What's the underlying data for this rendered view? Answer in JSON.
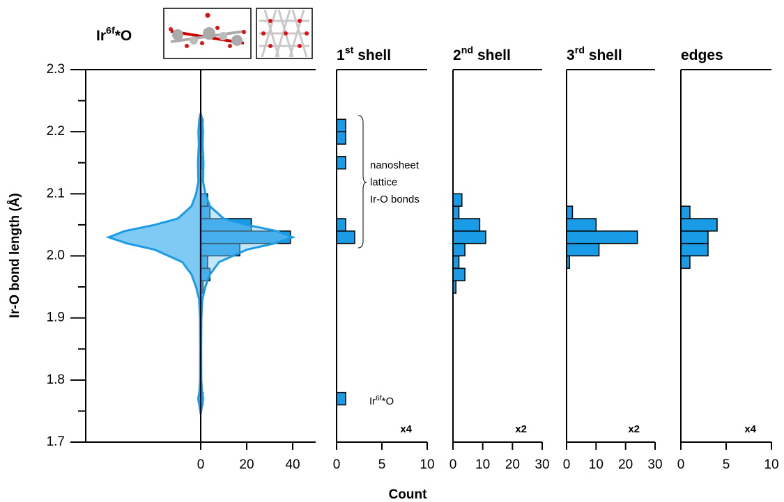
{
  "header_label": [
    "Ir",
    "6f",
    "*O"
  ],
  "chart_data": [
    {
      "type": "violin",
      "ylabel": "Ir-O bond length (Å)",
      "xlabel": "Count",
      "ylim": [
        1.7,
        2.3
      ],
      "yticks": [
        1.7,
        1.8,
        1.9,
        {
          "value": 2.0,
          "label": "2.0"
        },
        2.1,
        2.2,
        2.3
      ],
      "minor_yticks": [
        1.75,
        1.85,
        1.95,
        2.05,
        2.15,
        2.25
      ],
      "xlim": [
        -50,
        50
      ],
      "xticks": [
        0,
        20,
        40
      ],
      "bins": [
        1.74,
        1.76,
        1.78,
        1.8,
        1.82,
        1.84,
        1.86,
        1.88,
        1.9,
        1.92,
        1.94,
        1.96,
        1.98,
        2.0,
        2.02,
        2.04,
        2.06,
        2.08,
        2.1,
        2.12,
        2.14,
        2.16,
        2.18,
        2.2,
        2.22,
        2.24
      ],
      "counts": [
        0,
        1,
        0,
        0,
        0,
        0,
        0,
        0,
        0,
        0,
        1,
        4,
        3,
        17,
        39,
        22,
        4,
        3,
        0,
        0,
        1,
        0,
        1,
        1,
        0
      ],
      "density_y": [
        1.745,
        1.76,
        1.77,
        1.78,
        1.8,
        1.85,
        1.9,
        1.93,
        1.95,
        1.97,
        1.99,
        2.01,
        2.02,
        2.03,
        2.04,
        2.05,
        2.06,
        2.08,
        2.1,
        2.12,
        2.15,
        2.18,
        2.2,
        2.22,
        2.23
      ],
      "density_values": [
        0,
        0.6,
        1.1,
        0.6,
        0.25,
        0.2,
        0.3,
        0.7,
        2,
        4,
        8,
        20,
        32,
        40,
        33,
        20,
        10,
        4,
        2,
        1,
        1.2,
        0.8,
        1,
        0.6,
        0
      ],
      "color": "#1a9be6",
      "violin_color": "#7fcaf4"
    },
    {
      "type": "histogram",
      "title": [
        "1",
        "st",
        " shell"
      ],
      "scale_label": "x4",
      "xlim": [
        0,
        10
      ],
      "xticks": [
        0,
        5,
        10
      ],
      "bins": [
        1.74,
        1.76,
        1.78,
        1.8,
        1.82,
        1.84,
        1.86,
        1.88,
        1.9,
        1.92,
        1.94,
        1.96,
        1.98,
        2.0,
        2.02,
        2.04,
        2.06,
        2.08,
        2.1,
        2.12,
        2.14,
        2.16,
        2.18,
        2.2,
        2.22,
        2.24
      ],
      "counts": [
        0,
        1,
        0,
        0,
        0,
        0,
        0,
        0,
        0,
        0,
        0,
        0,
        0,
        0,
        2,
        1,
        0,
        0,
        0,
        0,
        1,
        0,
        1,
        1,
        0
      ],
      "color": "#1a9be6",
      "annotations": [
        {
          "text": [
            "nanosheet",
            "lattice",
            "Ir-O bonds"
          ]
        },
        {
          "text": [
            "Ir",
            "6f",
            "*O"
          ]
        }
      ]
    },
    {
      "type": "histogram",
      "title": [
        "2",
        "nd",
        " shell"
      ],
      "scale_label": "x2",
      "xlim": [
        0,
        30
      ],
      "xticks": [
        0,
        10,
        20,
        30
      ],
      "bins": [
        1.74,
        1.76,
        1.78,
        1.8,
        1.82,
        1.84,
        1.86,
        1.88,
        1.9,
        1.92,
        1.94,
        1.96,
        1.98,
        2.0,
        2.02,
        2.04,
        2.06,
        2.08,
        2.1,
        2.12,
        2.14,
        2.16,
        2.18,
        2.2,
        2.22,
        2.24
      ],
      "counts": [
        0,
        0,
        0,
        0,
        0,
        0,
        0,
        0,
        0,
        0,
        1,
        4,
        2,
        4,
        11,
        9,
        2,
        3,
        0,
        0,
        0,
        0,
        0,
        0,
        0
      ],
      "color": "#1a9be6"
    },
    {
      "type": "histogram",
      "title": [
        "3",
        "rd",
        " shell"
      ],
      "scale_label": "x2",
      "xlim": [
        0,
        30
      ],
      "xticks": [
        0,
        10,
        20,
        30
      ],
      "bins": [
        1.74,
        1.76,
        1.78,
        1.8,
        1.82,
        1.84,
        1.86,
        1.88,
        1.9,
        1.92,
        1.94,
        1.96,
        1.98,
        2.0,
        2.02,
        2.04,
        2.06,
        2.08,
        2.1,
        2.12,
        2.14,
        2.16,
        2.18,
        2.2,
        2.22,
        2.24
      ],
      "counts": [
        0,
        0,
        0,
        0,
        0,
        0,
        0,
        0,
        0,
        0,
        0,
        0,
        1,
        11,
        24,
        10,
        2,
        0,
        0,
        0,
        0,
        0,
        0,
        0,
        0
      ],
      "color": "#1a9be6"
    },
    {
      "type": "histogram",
      "title": [
        "edges"
      ],
      "scale_label": "x4",
      "xlim": [
        0,
        10
      ],
      "xticks": [
        0,
        5,
        10
      ],
      "bins": [
        1.74,
        1.76,
        1.78,
        1.8,
        1.82,
        1.84,
        1.86,
        1.88,
        1.9,
        1.92,
        1.94,
        1.96,
        1.98,
        2.0,
        2.02,
        2.04,
        2.06,
        2.08,
        2.1,
        2.12,
        2.14,
        2.16,
        2.18,
        2.2,
        2.22,
        2.24
      ],
      "counts": [
        0,
        0,
        0,
        0,
        0,
        0,
        0,
        0,
        0,
        0,
        0,
        0,
        1,
        3,
        3,
        4,
        1,
        0,
        0,
        0,
        0,
        0,
        0,
        0,
        0
      ],
      "color": "#1a9be6"
    }
  ]
}
